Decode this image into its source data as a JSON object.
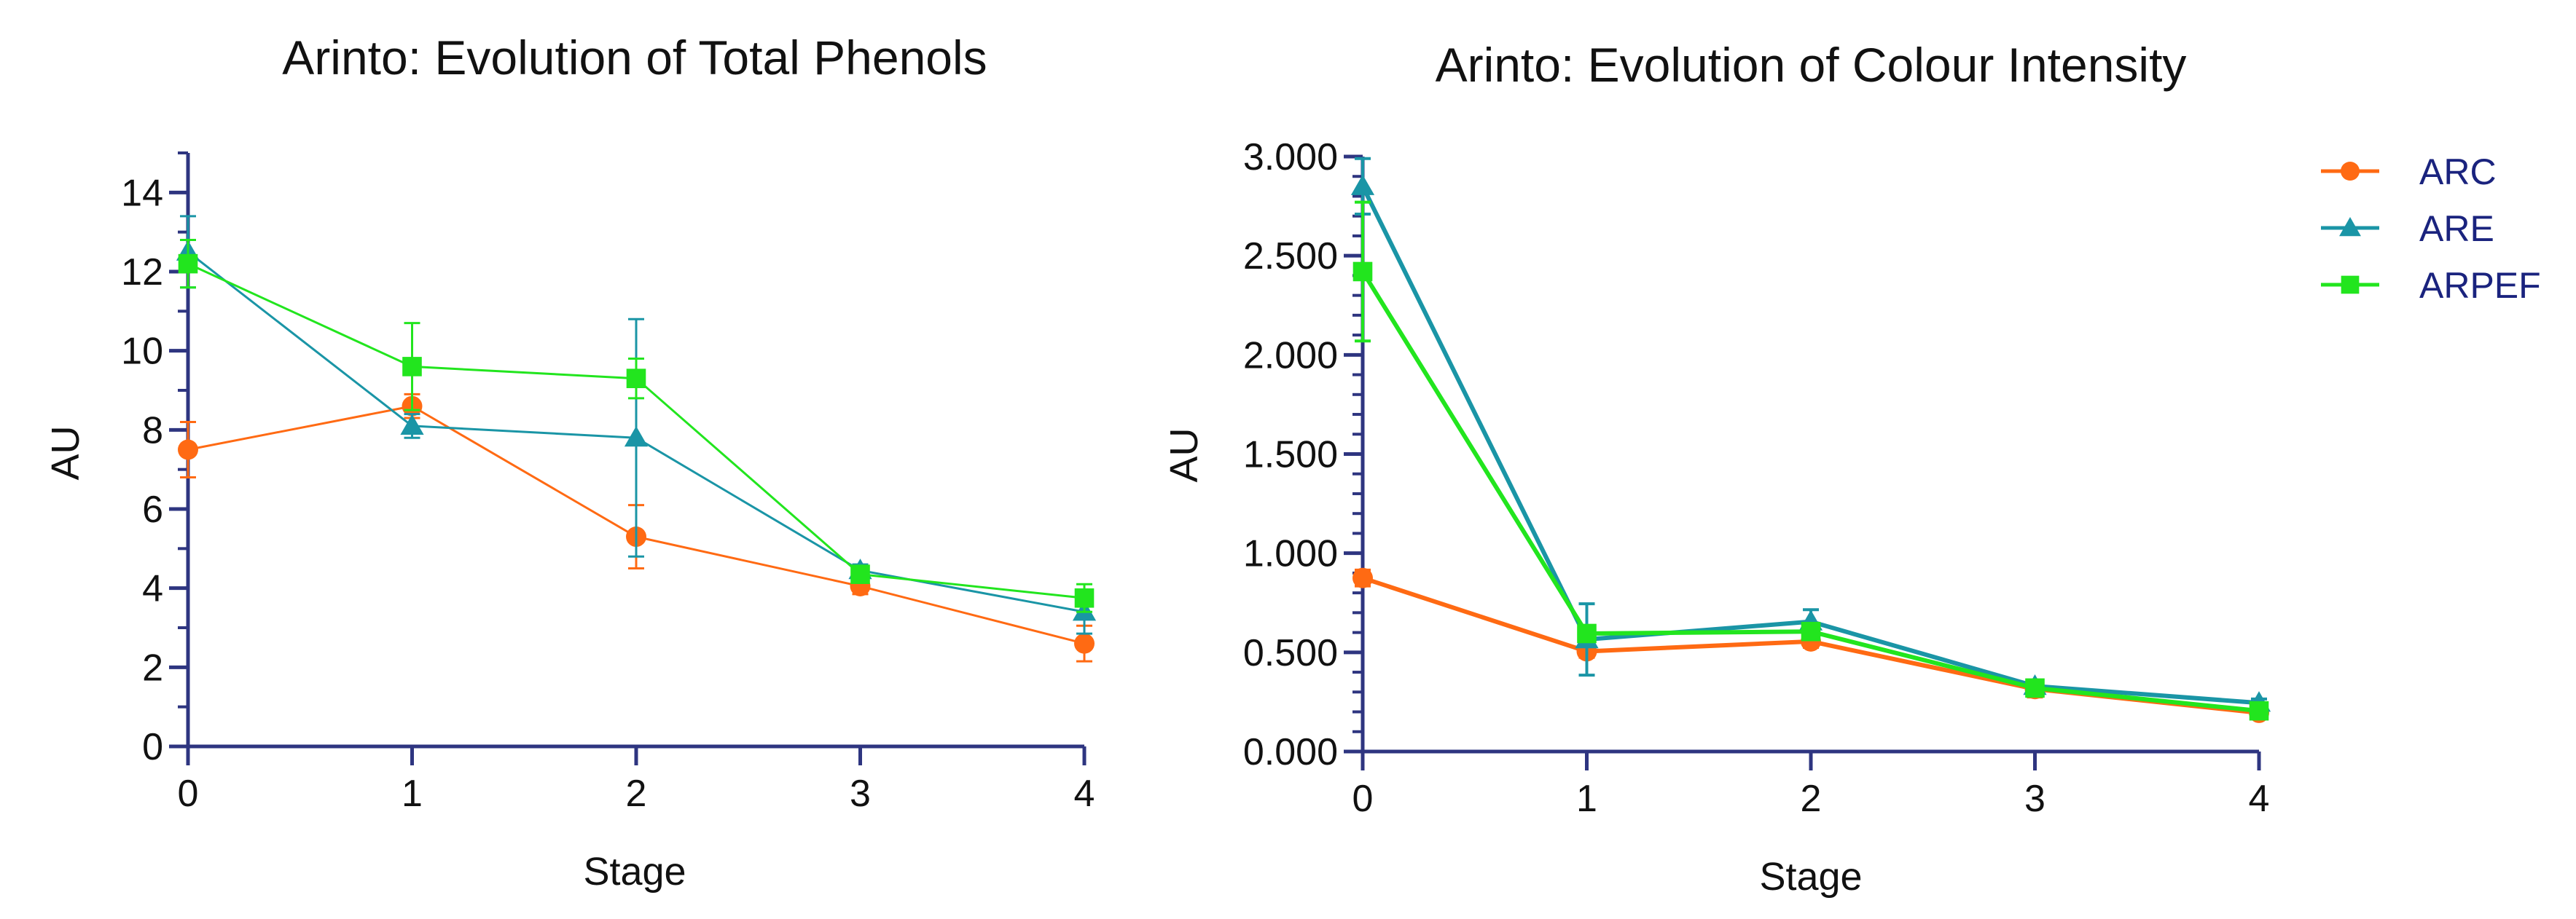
{
  "colors": {
    "axis": "#2e3580",
    "ARC": "#ff6a13",
    "ARE": "#1a95a6",
    "ARPEF": "#22e51e"
  },
  "chart_data": [
    {
      "type": "line",
      "title": "Arinto: Evolution of Total Phenols",
      "xlabel": "Stage",
      "ylabel": "AU",
      "x": [
        0,
        1,
        2,
        3,
        4
      ],
      "xlim": [
        0,
        4
      ],
      "ylim": [
        0,
        15
      ],
      "yticks": [
        0,
        2,
        4,
        6,
        8,
        10,
        12,
        14
      ],
      "ytick_labels": [
        "0",
        "2",
        "4",
        "6",
        "8",
        "10",
        "12",
        "14"
      ],
      "xtick_labels": [
        "0",
        "1",
        "2",
        "3",
        "4"
      ],
      "series": [
        {
          "name": "ARC",
          "marker": "circle",
          "values": [
            7.5,
            8.6,
            5.3,
            4.05,
            2.6
          ],
          "errors": [
            0.7,
            0.3,
            0.8,
            0.2,
            0.45
          ]
        },
        {
          "name": "ARE",
          "marker": "triangle",
          "values": [
            12.5,
            8.1,
            7.8,
            4.45,
            3.4
          ],
          "errors": [
            0.9,
            0.3,
            3.0,
            0.15,
            0.55
          ]
        },
        {
          "name": "ARPEF",
          "marker": "square",
          "values": [
            12.2,
            9.6,
            9.3,
            4.35,
            3.75
          ],
          "errors": [
            0.6,
            1.1,
            0.5,
            0.15,
            0.35
          ]
        }
      ]
    },
    {
      "type": "line",
      "title": "Arinto: Evolution of Colour Intensity",
      "xlabel": "Stage",
      "ylabel": "AU",
      "x": [
        0,
        1,
        2,
        3,
        4
      ],
      "xlim": [
        0,
        4
      ],
      "ylim": [
        0,
        3
      ],
      "yticks": [
        0,
        0.5,
        1,
        1.5,
        2,
        2.5,
        3
      ],
      "ytick_labels": [
        "0.000",
        "0.500",
        "1.000",
        "1.500",
        "2.000",
        "2.500",
        "3.000"
      ],
      "xtick_labels": [
        "0",
        "1",
        "2",
        "3",
        "4"
      ],
      "legend": {
        "position": "top-right",
        "entries": [
          "ARC",
          "ARE",
          "ARPEF"
        ]
      },
      "series": [
        {
          "name": "ARC",
          "marker": "circle",
          "values": [
            0.875,
            0.505,
            0.555,
            0.315,
            0.195
          ],
          "errors": [
            0.04,
            0.03,
            0.03,
            0.04,
            0.02
          ]
        },
        {
          "name": "ARE",
          "marker": "triangle",
          "values": [
            2.85,
            0.565,
            0.655,
            0.33,
            0.245
          ],
          "errors": [
            0.14,
            0.18,
            0.06,
            0.03,
            0.02
          ]
        },
        {
          "name": "ARPEF",
          "marker": "square",
          "values": [
            2.42,
            0.595,
            0.605,
            0.32,
            0.205
          ],
          "errors": [
            0.35,
            0.04,
            0.04,
            0.04,
            0.02
          ]
        }
      ]
    }
  ]
}
